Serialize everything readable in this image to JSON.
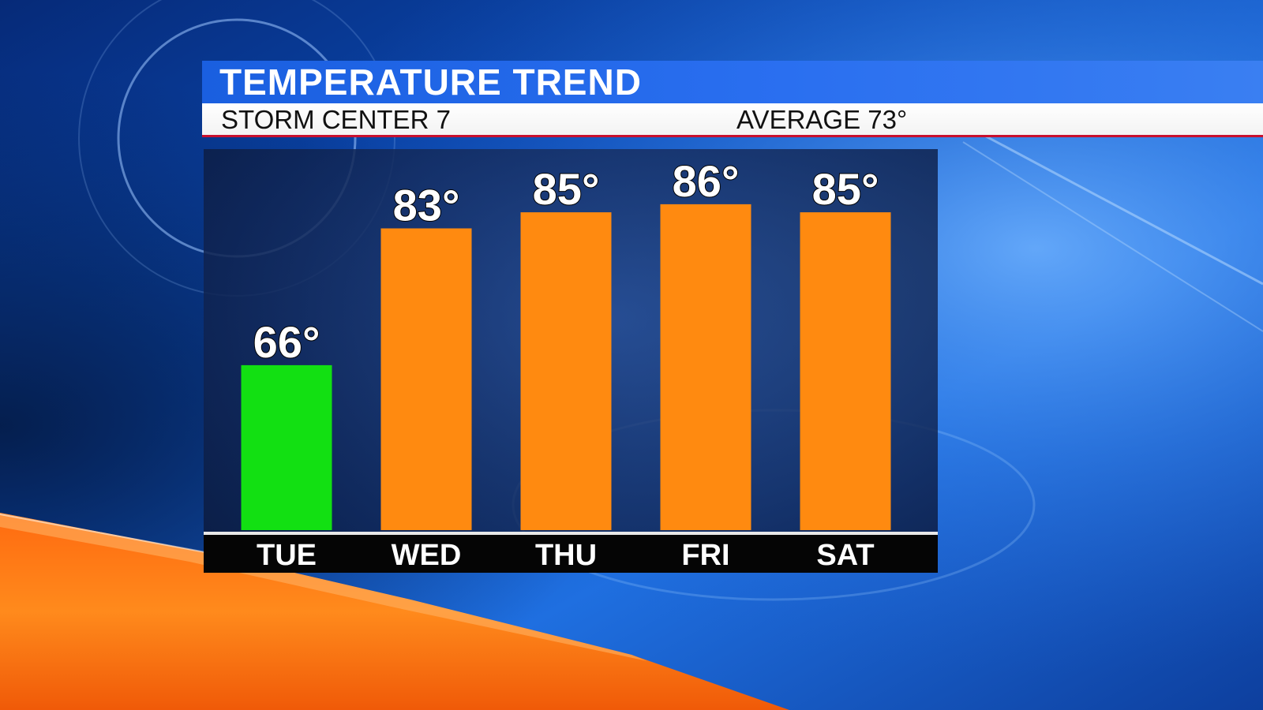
{
  "header": {
    "title": "TEMPERATURE TREND",
    "station": "STORM CENTER 7",
    "average": "AVERAGE 73°"
  },
  "colors": {
    "title_bar": "#1f63e8",
    "below_average_bar": "#12e012",
    "above_average_bar": "#ff8a10",
    "accent_red": "#c8102e"
  },
  "chart_data": {
    "type": "bar",
    "title": "TEMPERATURE TREND",
    "categories": [
      "TUE",
      "WED",
      "THU",
      "FRI",
      "SAT"
    ],
    "values": [
      66,
      83,
      85,
      86,
      85
    ],
    "value_labels": [
      "66°",
      "83°",
      "85°",
      "86°",
      "85°"
    ],
    "bar_colors": [
      "#12e012",
      "#ff8a10",
      "#ff8a10",
      "#ff8a10",
      "#ff8a10"
    ],
    "unit": "°",
    "xlabel": "",
    "ylabel": "",
    "grid": false,
    "legend": "none"
  }
}
